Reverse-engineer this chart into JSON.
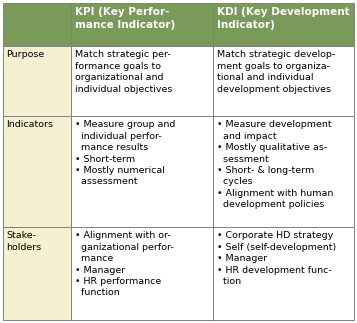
{
  "header_bg": "#7a9a5a",
  "header_text_color": "#ffffff",
  "row_label_bg": "#f5f0d0",
  "cell_bg": "#ffffff",
  "border_color": "#808080",
  "col_headers": [
    "KPI (Key Perfor-\nmance Indicator)",
    "KDI (Key Development\nIndicator)"
  ],
  "row_labels": [
    "Purpose",
    "Indicators",
    "Stake-\nholders"
  ],
  "kpi_purpose": "Match strategic per-\nformance goals to\norganizational and\nindividual objectives",
  "kdi_purpose": "Match strategic develop-\nment goals to organiza-\ntional and individual\ndevelopment objectives",
  "kpi_indicators": "• Measure group and\n  individual perfor-\n  mance results\n• Short-term\n• Mostly numerical\n  assessment",
  "kdi_indicators": "• Measure development\n  and impact\n• Mostly qualitative as-\n  sessment\n• Short- & long-term\n  cycles\n• Alignment with human\n  development policies",
  "kpi_stakeholders": "• Alignment with or-\n  ganizational perfor-\n  mance\n• Manager\n• HR performance\n  function",
  "kdi_stakeholders": "• Corporate HD strategy\n• Self (self-development)\n• Manager\n• HR development func-\n  tion"
}
